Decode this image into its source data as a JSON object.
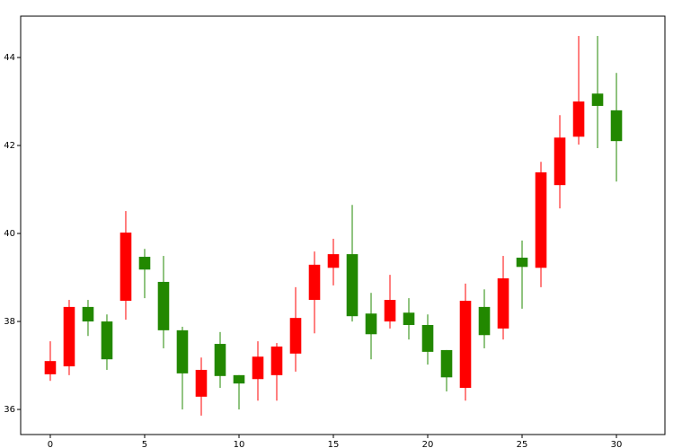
{
  "chart_data": {
    "type": "candlestick",
    "x": [
      0,
      1,
      2,
      3,
      4,
      5,
      6,
      7,
      8,
      9,
      10,
      11,
      12,
      13,
      14,
      15,
      16,
      17,
      18,
      19,
      20,
      21,
      22,
      23,
      24,
      25,
      26,
      27,
      28,
      29,
      30
    ],
    "open": [
      36.8,
      36.98,
      38.33,
      38.0,
      38.47,
      39.47,
      38.9,
      37.8,
      36.29,
      37.49,
      36.78,
      36.69,
      36.78,
      37.27,
      38.49,
      39.22,
      39.53,
      38.18,
      38.0,
      38.2,
      37.92,
      37.35,
      36.49,
      38.33,
      37.84,
      39.45,
      39.22,
      41.1,
      42.2,
      43.18,
      42.8
    ],
    "high": [
      37.55,
      38.49,
      38.49,
      38.16,
      40.51,
      39.65,
      39.49,
      37.88,
      37.18,
      37.76,
      36.78,
      37.55,
      37.51,
      38.78,
      39.59,
      39.88,
      40.65,
      38.65,
      39.06,
      38.53,
      38.16,
      37.35,
      38.86,
      38.73,
      39.49,
      39.84,
      41.63,
      42.69,
      44.49,
      44.49,
      43.65
    ],
    "low": [
      36.65,
      36.78,
      37.67,
      36.9,
      38.04,
      38.53,
      37.39,
      36.0,
      35.86,
      36.49,
      36.0,
      36.2,
      36.2,
      36.86,
      37.73,
      38.82,
      38.0,
      37.14,
      37.84,
      37.59,
      37.02,
      36.41,
      36.2,
      37.39,
      37.59,
      38.29,
      38.78,
      40.57,
      42.02,
      41.94,
      41.18
    ],
    "close": [
      37.1,
      38.33,
      38.0,
      37.14,
      40.02,
      39.18,
      37.8,
      36.82,
      36.9,
      36.76,
      36.59,
      37.2,
      37.43,
      38.08,
      39.29,
      39.53,
      38.12,
      37.71,
      38.49,
      37.92,
      37.31,
      36.73,
      38.47,
      37.69,
      38.98,
      39.24,
      41.39,
      42.18,
      43.0,
      42.9,
      42.1
    ],
    "up_color": "#ff0000",
    "down_color": "#228800",
    "xlim": [
      -1.57,
      32.57
    ],
    "ylim": [
      35.43,
      44.94
    ],
    "xticks": [
      0,
      5,
      10,
      15,
      20,
      25,
      30
    ],
    "yticks": [
      36,
      38,
      40,
      42,
      44
    ]
  }
}
